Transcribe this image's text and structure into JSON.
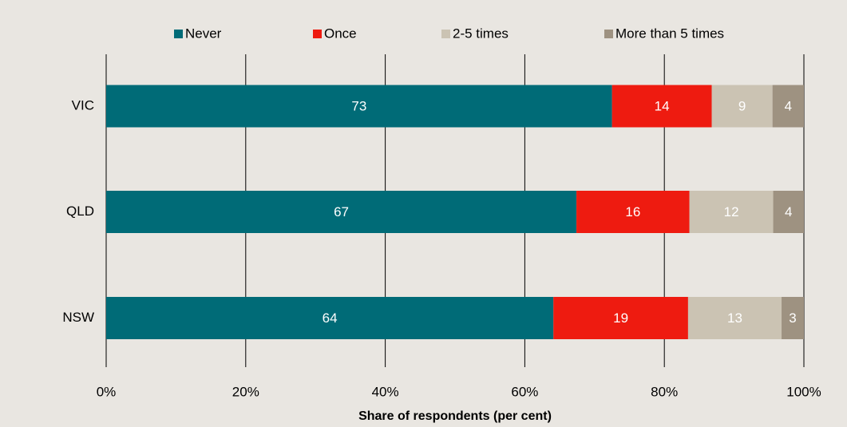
{
  "chart_data": {
    "type": "stacked-barh",
    "categories": [
      "VIC",
      "QLD",
      "NSW"
    ],
    "series": [
      {
        "name": "Never",
        "color": "#006b77",
        "values": [
          72.5,
          67.4,
          64.1
        ],
        "value_labels": [
          "73",
          "67",
          "64"
        ]
      },
      {
        "name": "Once",
        "color": "#ee1b10",
        "values": [
          14.3,
          16.2,
          19.3
        ],
        "value_labels": [
          "14",
          "16",
          "19"
        ]
      },
      {
        "name": "2-5 times",
        "color": "#cbc3b3",
        "values": [
          8.7,
          12.0,
          13.4
        ],
        "value_labels": [
          "9",
          "12",
          "13"
        ]
      },
      {
        "name": "More than 5 times",
        "color": "#9e9281",
        "values": [
          4.5,
          4.4,
          3.2
        ],
        "value_labels": [
          "4",
          "4",
          "3"
        ]
      }
    ],
    "xlabel": "Share of respondents (per cent)",
    "xlim": [
      0,
      100
    ],
    "xticks": [
      {
        "value": 0,
        "label": "0%"
      },
      {
        "value": 20,
        "label": "20%"
      },
      {
        "value": 40,
        "label": "40%"
      },
      {
        "value": 60,
        "label": "60%"
      },
      {
        "value": 80,
        "label": "80%"
      },
      {
        "value": 100,
        "label": "100%"
      }
    ],
    "grid": true,
    "legend": "top"
  }
}
